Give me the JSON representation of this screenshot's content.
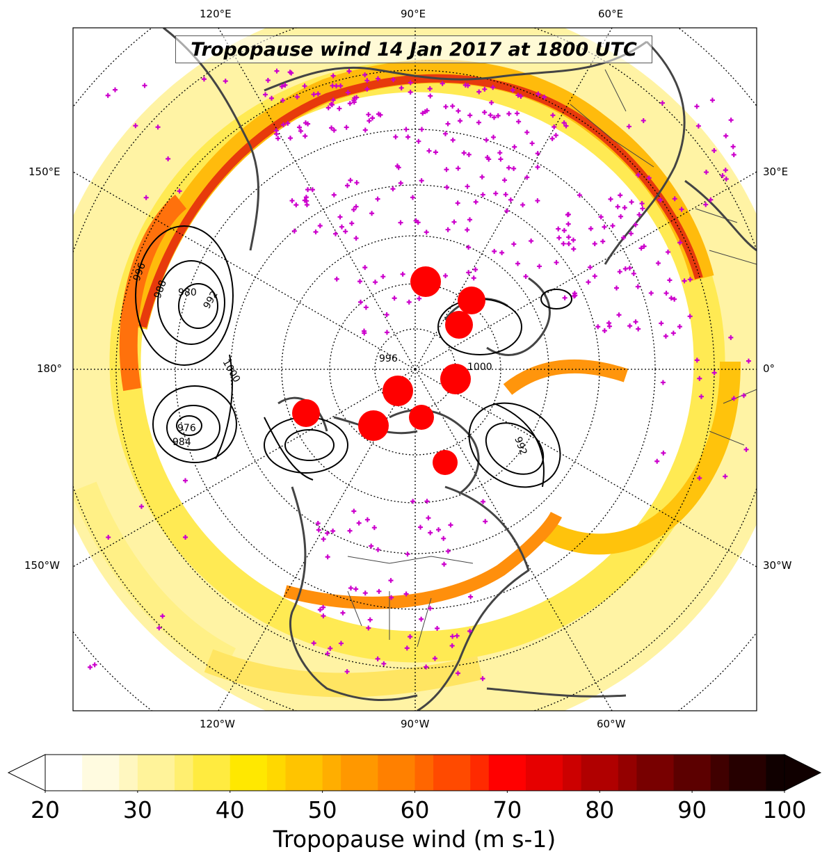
{
  "title": "Tropopause wind 14 Jan 2017 at 1800 UTC",
  "top_lon_labels": [
    "120°E",
    "90°E",
    "60°E"
  ],
  "bottom_lon_labels": [
    "120°W",
    "90°W",
    "60°W"
  ],
  "left_lon_labels": [
    "150°E",
    "180°",
    "150°W"
  ],
  "right_lon_labels": [
    "30°E",
    "0°",
    "30°W"
  ],
  "colorbar": {
    "label": "Tropopause wind (m s-1)",
    "ticks": [
      "20",
      "30",
      "40",
      "50",
      "60",
      "70",
      "80",
      "90",
      "100"
    ],
    "min": 20,
    "max": 100,
    "step": 2,
    "colors": [
      "#ffffff",
      "#fffbe0",
      "#fff7c0",
      "#fff39a",
      "#ffef70",
      "#ffeb40",
      "#ffe800",
      "#ffd800",
      "#ffc400",
      "#ffae00",
      "#ff9800",
      "#ff8000",
      "#ff6600",
      "#ff4a00",
      "#ff2a00",
      "#ff0000",
      "#e60000",
      "#cc0000",
      "#b00000",
      "#940000",
      "#780000",
      "#5c0000",
      "#400000",
      "#260000",
      "#100000"
    ]
  },
  "pressure_contour_labels": [
    "996",
    "988",
    "980",
    "992",
    "1000",
    "976",
    "984",
    "996",
    "1000",
    "992"
  ],
  "colors": {
    "coastline": "#444444",
    "graticule": "#000000",
    "station_marker": "#cc00cc",
    "low_center": "#ff0000",
    "contour": "#000000"
  }
}
